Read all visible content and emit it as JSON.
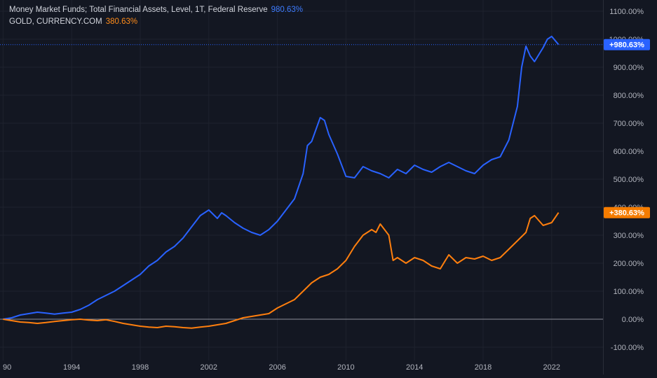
{
  "chart_data": {
    "type": "line",
    "x_labels": [
      "90",
      "1994",
      "1998",
      "2002",
      "2006",
      "2010",
      "2014",
      "2018",
      "2022"
    ],
    "x_ticks": [
      1990,
      1994,
      1998,
      2002,
      2006,
      2010,
      2014,
      2018,
      2022
    ],
    "xlim": [
      1990,
      2025
    ],
    "y_ticks": [
      "1100.00%",
      "1000.00%",
      "900.00%",
      "800.00%",
      "700.00%",
      "600.00%",
      "500.00%",
      "400.00%",
      "300.00%",
      "200.00%",
      "100.00%",
      "0.00%",
      "-100.00%"
    ],
    "y_tick_values": [
      1100,
      1000,
      900,
      800,
      700,
      600,
      500,
      400,
      300,
      200,
      100,
      0,
      -100
    ],
    "ylim": [
      -110,
      1110
    ],
    "grid": true,
    "series": [
      {
        "name": "Money Market Funds; Total Financial Assets, Level, 1T, Federal Reserve",
        "last_value_label": "980.63%",
        "badge_label": "+980.63%",
        "last_value": 980.63,
        "color": "#2962ff",
        "x": [
          1990.0,
          1990.5,
          1991.0,
          1991.5,
          1992.0,
          1992.5,
          1993.0,
          1993.5,
          1994.0,
          1994.5,
          1995.0,
          1995.5,
          1996.0,
          1996.5,
          1997.0,
          1997.5,
          1998.0,
          1998.5,
          1999.0,
          1999.5,
          2000.0,
          2000.5,
          2001.0,
          2001.5,
          2002.0,
          2002.5,
          2002.75,
          2003.0,
          2003.5,
          2004.0,
          2004.5,
          2005.0,
          2005.5,
          2006.0,
          2006.5,
          2007.0,
          2007.5,
          2007.75,
          2008.0,
          2008.5,
          2008.75,
          2009.0,
          2009.5,
          2010.0,
          2010.5,
          2011.0,
          2011.5,
          2012.0,
          2012.5,
          2013.0,
          2013.5,
          2014.0,
          2014.5,
          2015.0,
          2015.5,
          2016.0,
          2016.5,
          2017.0,
          2017.5,
          2018.0,
          2018.5,
          2019.0,
          2019.5,
          2020.0,
          2020.25,
          2020.5,
          2020.75,
          2021.0,
          2021.5,
          2021.75,
          2022.0,
          2022.4
        ],
        "values": [
          0,
          5,
          15,
          20,
          25,
          22,
          18,
          22,
          25,
          35,
          50,
          70,
          85,
          100,
          120,
          140,
          160,
          190,
          210,
          240,
          260,
          290,
          330,
          370,
          390,
          360,
          380,
          370,
          345,
          325,
          310,
          300,
          320,
          350,
          390,
          430,
          520,
          620,
          635,
          720,
          710,
          660,
          590,
          510,
          505,
          545,
          530,
          520,
          505,
          535,
          520,
          550,
          535,
          525,
          545,
          560,
          545,
          530,
          520,
          550,
          570,
          580,
          640,
          760,
          900,
          975,
          940,
          920,
          970,
          1000,
          1010,
          980.63
        ]
      },
      {
        "name": "GOLD, CURRENCY.COM",
        "last_value_label": "380.63%",
        "badge_label": "+380.63%",
        "last_value": 380.63,
        "color": "#ff7f0e",
        "x": [
          1990.0,
          1990.5,
          1991.0,
          1991.5,
          1992.0,
          1992.5,
          1993.0,
          1993.5,
          1994.0,
          1994.5,
          1995.0,
          1995.5,
          1996.0,
          1996.5,
          1997.0,
          1997.5,
          1998.0,
          1998.5,
          1999.0,
          1999.5,
          2000.0,
          2000.5,
          2001.0,
          2001.5,
          2002.0,
          2002.5,
          2003.0,
          2003.5,
          2004.0,
          2004.5,
          2005.0,
          2005.5,
          2006.0,
          2006.5,
          2007.0,
          2007.5,
          2008.0,
          2008.5,
          2009.0,
          2009.5,
          2010.0,
          2010.5,
          2011.0,
          2011.5,
          2011.75,
          2012.0,
          2012.5,
          2012.75,
          2013.0,
          2013.5,
          2014.0,
          2014.5,
          2015.0,
          2015.5,
          2016.0,
          2016.5,
          2017.0,
          2017.5,
          2018.0,
          2018.5,
          2019.0,
          2019.5,
          2020.0,
          2020.5,
          2020.75,
          2021.0,
          2021.5,
          2022.0,
          2022.4
        ],
        "values": [
          0,
          -5,
          -10,
          -12,
          -15,
          -12,
          -8,
          -5,
          -2,
          0,
          -3,
          -5,
          -2,
          -8,
          -15,
          -20,
          -25,
          -28,
          -30,
          -25,
          -27,
          -30,
          -32,
          -28,
          -25,
          -20,
          -15,
          -5,
          5,
          10,
          15,
          20,
          40,
          55,
          70,
          100,
          130,
          150,
          160,
          180,
          210,
          260,
          300,
          320,
          310,
          340,
          300,
          210,
          220,
          200,
          220,
          210,
          190,
          180,
          230,
          200,
          220,
          215,
          225,
          210,
          220,
          250,
          280,
          310,
          360,
          370,
          335,
          345,
          380.63
        ]
      }
    ]
  }
}
